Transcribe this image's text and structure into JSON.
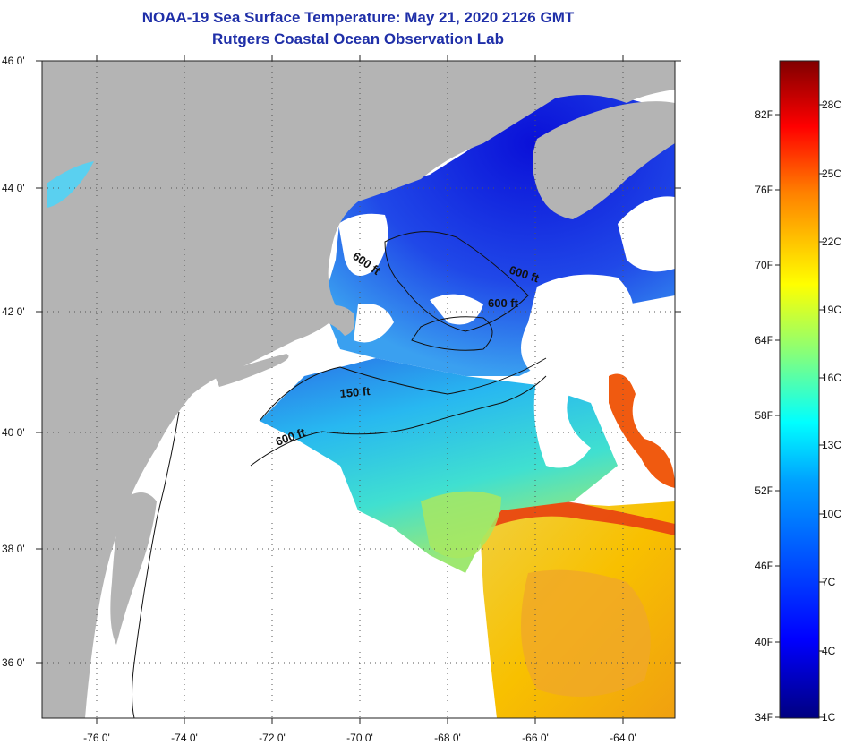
{
  "title": {
    "line1": "NOAA-19 Sea Surface Temperature:  May 21, 2020 2126 GMT",
    "line2": "Rutgers Coastal Ocean Observation Lab"
  },
  "map": {
    "lat_ticks": [
      "46 0'",
      "44 0'",
      "42 0'",
      "40 0'",
      "38 0'",
      "36 0'"
    ],
    "lon_ticks": [
      "-76 0'",
      "-74 0'",
      "-72 0'",
      "-70 0'",
      "-68 0'",
      "-66 0'",
      "-64 0'"
    ],
    "contour_labels": [
      "600 ft",
      "600 ft",
      "600 ft",
      "150 ft",
      "600 ft"
    ],
    "colors": {
      "land": "#b4b4b4",
      "cloud": "#ffffff",
      "cold": "#1020d0",
      "mid": "#22c8f0",
      "warm": "#f5c000",
      "hot": "#e83c10"
    }
  },
  "colorbar": {
    "fahrenheit": [
      "82F",
      "76F",
      "70F",
      "64F",
      "58F",
      "52F",
      "46F",
      "40F",
      "34F"
    ],
    "celsius": [
      "28C",
      "25C",
      "22C",
      "19C",
      "16C",
      "13C",
      "10C",
      "7C",
      "4C",
      "1C"
    ]
  }
}
